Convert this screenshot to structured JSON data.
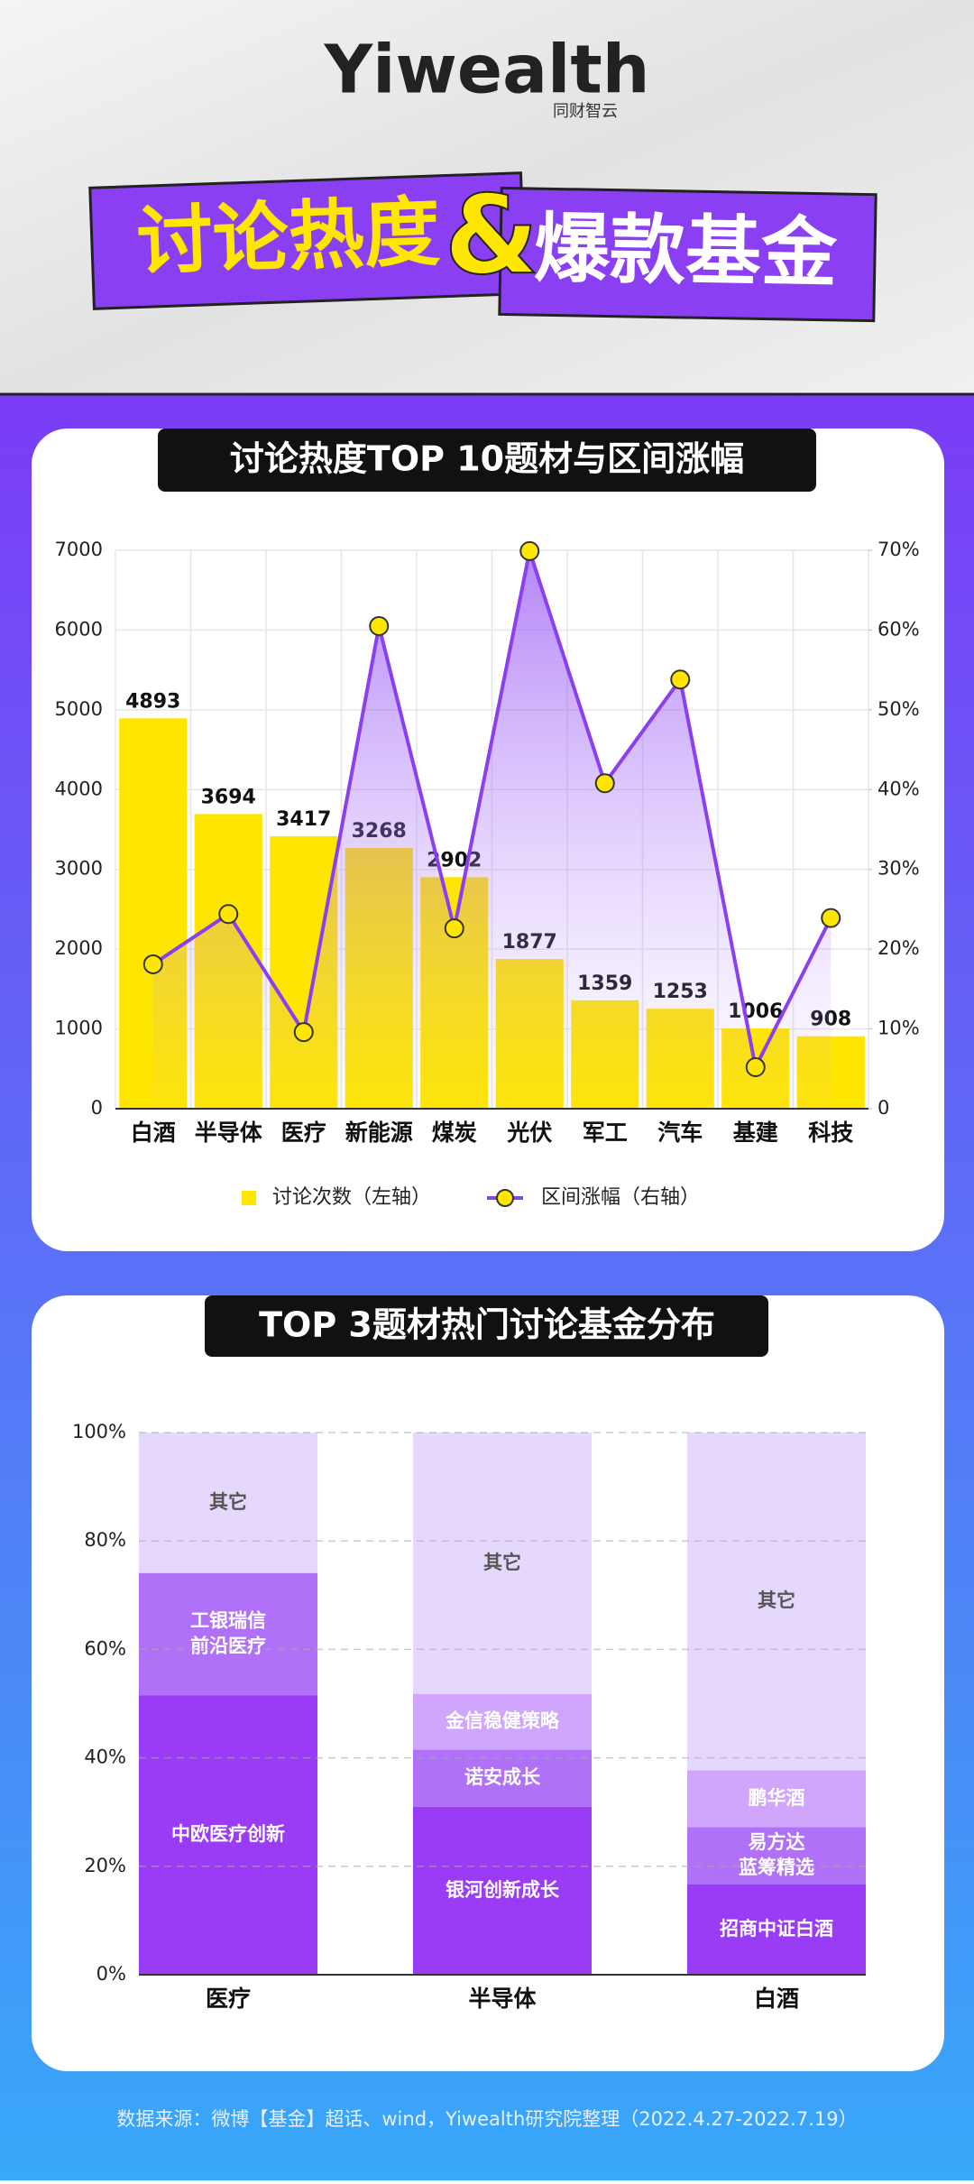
{
  "header": {
    "logo": "Yiwealth",
    "logo_sub": "同财智云",
    "title_left": "讨论热度",
    "title_amp": "&",
    "title_right": "爆款基金"
  },
  "chart_data": [
    {
      "type": "combo",
      "title": "讨论热度TOP 10题材与区间涨幅",
      "categories": [
        "白酒",
        "半导体",
        "医疗",
        "新能源",
        "煤炭",
        "光伏",
        "军工",
        "汽车",
        "基建",
        "科技"
      ],
      "series": [
        {
          "name": "讨论次数（左轴）",
          "type": "bar",
          "color": "#ffe600",
          "values": [
            4893,
            3694,
            3417,
            3268,
            2902,
            1877,
            1359,
            1253,
            1006,
            908
          ]
        },
        {
          "name": "区间涨幅（右轴）",
          "type": "line",
          "axis": "y2",
          "color": "#8b3ff2",
          "values": [
            18.1,
            24.4,
            9.6,
            60.5,
            22.6,
            69.9,
            40.8,
            53.8,
            5.2,
            23.9
          ]
        }
      ],
      "ylim": [
        0,
        7000
      ],
      "yticks": [
        0,
        1000,
        2000,
        3000,
        4000,
        5000,
        6000,
        7000
      ],
      "y2lim": [
        0,
        70
      ],
      "y2ticks": [
        0,
        {
          "value": 10,
          "label": "10%"
        },
        {
          "value": 20,
          "label": "20%"
        },
        {
          "value": 30,
          "label": "30%"
        },
        {
          "value": 40,
          "label": "40%"
        },
        {
          "value": 50,
          "label": "50%"
        },
        {
          "value": 60,
          "label": "60%"
        },
        {
          "value": 70,
          "label": "70%"
        }
      ],
      "grid": true
    },
    {
      "type": "stacked_bar",
      "title": "TOP 3题材热门讨论基金分布",
      "categories": [
        "医疗",
        "半导体",
        "白酒"
      ],
      "stacks": [
        [
          {
            "label": [
              "中欧医疗创新"
            ],
            "value": 51.5,
            "color": "#9a3cf6",
            "text_color": "#ffffff"
          },
          {
            "label": [
              "工银瑞信",
              "前沿医疗"
            ],
            "value": 22.6,
            "color": "#b070f8",
            "text_color": "#ffffff"
          },
          {
            "label": [
              "其它"
            ],
            "value": 25.9,
            "color": "#e6d8fd",
            "text_color": "#555555"
          }
        ],
        [
          {
            "label": [
              "银河创新成长"
            ],
            "value": 31.0,
            "color": "#9a3cf6",
            "text_color": "#ffffff"
          },
          {
            "label": [
              "诺安成长"
            ],
            "value": 10.5,
            "color": "#b070f8",
            "text_color": "#ffffff"
          },
          {
            "label": [
              "金信稳健策略"
            ],
            "value": 10.3,
            "color": "#cfa6fb",
            "text_color": "#ffffff"
          },
          {
            "label": [
              "其它"
            ],
            "value": 48.2,
            "color": "#e6d8fd",
            "text_color": "#555555"
          }
        ],
        [
          {
            "label": [
              "招商中证白酒"
            ],
            "value": 16.7,
            "color": "#9a3cf6",
            "text_color": "#ffffff"
          },
          {
            "label": [
              "易方达",
              "蓝筹精选"
            ],
            "value": 10.5,
            "color": "#b070f8",
            "text_color": "#ffffff"
          },
          {
            "label": [
              "鹏华酒"
            ],
            "value": 10.5,
            "color": "#cfa6fb",
            "text_color": "#ffffff"
          },
          {
            "label": [
              "其它"
            ],
            "value": 62.3,
            "color": "#e6d8fd",
            "text_color": "#555555"
          }
        ]
      ],
      "ylim": [
        0,
        100
      ],
      "yticks": [
        {
          "value": 0,
          "label": "0%"
        },
        {
          "value": 20,
          "label": "20%"
        },
        {
          "value": 40,
          "label": "40%"
        },
        {
          "value": 60,
          "label": "60%"
        },
        {
          "value": 80,
          "label": "80%"
        },
        {
          "value": 100,
          "label": "100%"
        }
      ],
      "grid": true
    }
  ],
  "footer": {
    "source": "数据来源：微博【基金】超话、wind，Yiwealth研究院整理（2022.4.27-2022.7.19）"
  }
}
